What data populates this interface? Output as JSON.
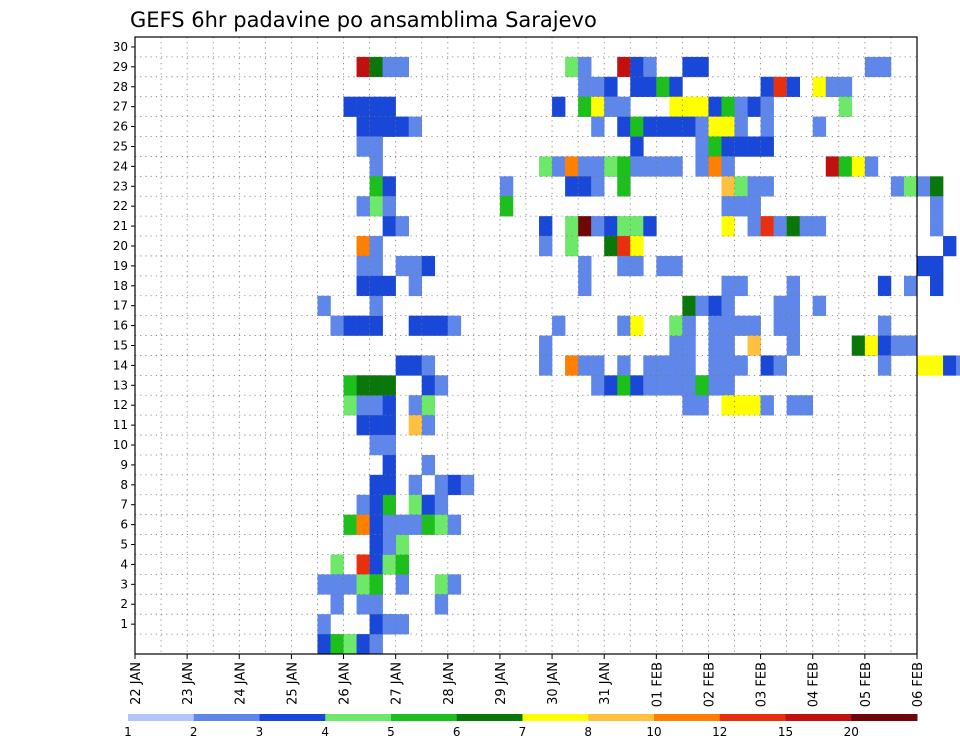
{
  "chart_data": {
    "type": "heatmap",
    "title": "GEFS 6hr padavine po ansamblima Sarajevo",
    "xlabel": "",
    "ylabel": "",
    "y_ticks": [
      "1",
      "2",
      "3",
      "4",
      "5",
      "6",
      "7",
      "8",
      "9",
      "10",
      "11",
      "12",
      "13",
      "14",
      "15",
      "16",
      "17",
      "18",
      "19",
      "20",
      "21",
      "22",
      "23",
      "24",
      "25",
      "26",
      "27",
      "28",
      "29",
      "30"
    ],
    "x_ticks": [
      "22 JAN",
      "23 JAN",
      "24 JAN",
      "25 JAN",
      "26 JAN",
      "27 JAN",
      "28 JAN",
      "29 JAN",
      "30 JAN",
      "31 JAN",
      "01 FEB",
      "02 FEB",
      "03 FEB",
      "04 FEB",
      "05 FEB",
      "06 FEB"
    ],
    "grid": true,
    "colorbar": {
      "levels": [
        1,
        2,
        3,
        4,
        5,
        6,
        7,
        8,
        10,
        12,
        15,
        20
      ],
      "tick_labels": [
        "1",
        "2",
        "3",
        "4",
        "5",
        "6",
        "7",
        "8",
        "10",
        "12",
        "15",
        "20"
      ],
      "colors": [
        "#b4c6f8",
        "#5f87ea",
        "#1948d8",
        "#6ee868",
        "#1cbf1c",
        "#0a770a",
        "#ffff00",
        "#ffc040",
        "#ff8000",
        "#e83010",
        "#c01010",
        "#6e0808"
      ]
    },
    "cells_note_units": "day = days after 22 JAN 00UTC, slot = 6h step, member = ensemble row, cat = colorbar level index 0-11",
    "cells": [
      [
        3.5,
        3,
        1
      ],
      [
        3.75,
        2,
        1
      ],
      [
        3.75,
        4,
        3
      ],
      [
        4.25,
        2,
        1
      ],
      [
        4.5,
        4,
        4
      ],
      [
        3.75,
        16,
        1
      ],
      [
        4,
        16,
        2
      ],
      [
        4.25,
        16,
        2
      ],
      [
        4.5,
        16,
        2
      ],
      [
        4.5,
        17,
        1
      ],
      [
        3.5,
        17,
        1
      ],
      [
        4,
        27,
        2
      ],
      [
        4.25,
        27,
        2
      ],
      [
        4.5,
        27,
        2
      ],
      [
        4.75,
        27,
        2
      ],
      [
        4.75,
        26,
        2
      ],
      [
        4.25,
        29,
        10
      ],
      [
        4.5,
        29,
        5
      ],
      [
        4.75,
        29,
        1
      ],
      [
        5,
        29,
        1
      ],
      [
        3.5,
        1,
        1
      ],
      [
        3.5,
        0,
        2
      ],
      [
        3.75,
        0,
        4
      ],
      [
        4,
        0,
        3
      ],
      [
        4.25,
        0,
        2
      ],
      [
        4.5,
        0,
        1
      ],
      [
        4.75,
        1,
        2
      ],
      [
        5,
        1,
        1
      ],
      [
        4.25,
        4,
        9
      ],
      [
        4.5,
        4,
        2
      ],
      [
        4.75,
        4,
        3
      ],
      [
        4.25,
        26,
        2
      ],
      [
        4.5,
        26,
        2
      ],
      [
        4.75,
        26,
        2
      ],
      [
        5,
        26,
        2
      ],
      [
        5.25,
        26,
        1
      ],
      [
        4.25,
        25,
        1
      ],
      [
        4.5,
        25,
        1
      ],
      [
        4.5,
        24,
        1
      ],
      [
        4.5,
        23,
        4
      ],
      [
        4.75,
        23,
        2
      ],
      [
        4.5,
        22,
        3
      ],
      [
        4.75,
        22,
        1
      ],
      [
        4.25,
        22,
        1
      ],
      [
        4.75,
        21,
        2
      ],
      [
        5,
        21,
        1
      ],
      [
        4.25,
        20,
        8
      ],
      [
        4.5,
        20,
        1
      ],
      [
        4.25,
        19,
        1
      ],
      [
        4.5,
        19,
        1
      ],
      [
        5,
        19,
        1
      ],
      [
        5.25,
        19,
        1
      ],
      [
        5.5,
        19,
        2
      ],
      [
        4.25,
        18,
        2
      ],
      [
        4.5,
        18,
        2
      ],
      [
        4.75,
        18,
        2
      ],
      [
        5.25,
        18,
        1
      ],
      [
        5.25,
        16,
        2
      ],
      [
        5.5,
        16,
        2
      ],
      [
        5.75,
        16,
        2
      ],
      [
        6,
        16,
        1
      ],
      [
        5,
        14,
        2
      ],
      [
        5.25,
        14,
        2
      ],
      [
        5.5,
        14,
        1
      ],
      [
        5.5,
        13,
        2
      ],
      [
        5.75,
        13,
        1
      ],
      [
        4.75,
        13,
        5
      ],
      [
        4.5,
        13,
        1
      ],
      [
        4.25,
        13,
        1
      ],
      [
        4,
        12,
        3
      ],
      [
        4.25,
        12,
        1
      ],
      [
        4.5,
        12,
        1
      ],
      [
        4.75,
        12,
        2
      ],
      [
        4.25,
        11,
        2
      ],
      [
        4.5,
        11,
        2
      ],
      [
        4.75,
        11,
        2
      ],
      [
        4.75,
        10,
        1
      ],
      [
        4.5,
        10,
        1
      ],
      [
        5.25,
        12,
        1
      ],
      [
        5.5,
        12,
        3
      ],
      [
        5.5,
        11,
        1
      ],
      [
        5.25,
        11,
        7
      ],
      [
        5.5,
        9,
        1
      ],
      [
        5.25,
        8,
        1
      ],
      [
        5.75,
        8,
        1
      ],
      [
        6,
        8,
        2
      ],
      [
        6.25,
        8,
        1
      ],
      [
        5.25,
        7,
        3
      ],
      [
        5.25,
        6,
        1
      ],
      [
        5.5,
        7,
        2
      ],
      [
        5.75,
        7,
        1
      ],
      [
        4.5,
        3,
        1
      ],
      [
        4.5,
        2,
        1
      ],
      [
        4.5,
        1,
        2
      ],
      [
        4.75,
        1,
        1
      ],
      [
        5,
        3,
        1
      ],
      [
        5,
        4,
        4
      ],
      [
        5,
        5,
        3
      ],
      [
        5,
        6,
        1
      ],
      [
        4.5,
        6,
        4
      ],
      [
        4.75,
        6,
        1
      ],
      [
        4.75,
        5,
        1
      ],
      [
        4.75,
        7,
        4
      ],
      [
        4.25,
        7,
        1
      ],
      [
        4.5,
        7,
        2
      ],
      [
        4.5,
        8,
        2
      ],
      [
        4.75,
        8,
        2
      ],
      [
        4.75,
        9,
        2
      ],
      [
        4,
        6,
        4
      ],
      [
        4.25,
        6,
        8
      ],
      [
        4.5,
        5,
        2
      ],
      [
        4.5,
        6,
        2
      ],
      [
        5.5,
        6,
        4
      ],
      [
        5.75,
        6,
        3
      ],
      [
        6,
        6,
        1
      ],
      [
        4,
        13,
        4
      ],
      [
        4.25,
        13,
        5
      ],
      [
        4.5,
        13,
        5
      ],
      [
        3.75,
        3,
        1
      ],
      [
        4,
        3,
        1
      ],
      [
        4.25,
        3,
        3
      ],
      [
        4.5,
        3,
        4
      ],
      [
        5.75,
        3,
        3
      ],
      [
        6,
        3,
        1
      ],
      [
        5.75,
        2,
        1
      ],
      [
        8.25,
        29,
        3
      ],
      [
        8.5,
        29,
        1
      ],
      [
        9.25,
        29,
        10
      ],
      [
        9.5,
        29,
        2
      ],
      [
        9.75,
        29,
        1
      ],
      [
        10.5,
        29,
        2
      ],
      [
        10.75,
        29,
        2
      ],
      [
        14,
        29,
        1
      ],
      [
        14.25,
        29,
        1
      ],
      [
        8.5,
        28,
        1
      ],
      [
        8.75,
        28,
        1
      ],
      [
        9,
        28,
        2
      ],
      [
        9.5,
        28,
        2
      ],
      [
        9.75,
        28,
        2
      ],
      [
        10,
        28,
        4
      ],
      [
        10.25,
        28,
        2
      ],
      [
        12,
        28,
        2
      ],
      [
        12.25,
        28,
        9
      ],
      [
        12.5,
        28,
        2
      ],
      [
        13,
        28,
        6
      ],
      [
        13.25,
        28,
        1
      ],
      [
        13.5,
        28,
        1
      ],
      [
        8,
        27,
        2
      ],
      [
        8.5,
        27,
        4
      ],
      [
        8.75,
        27,
        6
      ],
      [
        9,
        27,
        1
      ],
      [
        9.25,
        27,
        1
      ],
      [
        10.25,
        27,
        6
      ],
      [
        10.5,
        27,
        6
      ],
      [
        10.75,
        27,
        6
      ],
      [
        11,
        27,
        2
      ],
      [
        11.25,
        27,
        4
      ],
      [
        11.5,
        27,
        1
      ],
      [
        11.75,
        27,
        2
      ],
      [
        12,
        27,
        1
      ],
      [
        13.5,
        27,
        3
      ],
      [
        8.75,
        26,
        1
      ],
      [
        9.25,
        26,
        2
      ],
      [
        9.5,
        26,
        4
      ],
      [
        9.75,
        26,
        2
      ],
      [
        10,
        26,
        2
      ],
      [
        10.25,
        26,
        2
      ],
      [
        10.5,
        26,
        2
      ],
      [
        10.75,
        26,
        1
      ],
      [
        11,
        26,
        6
      ],
      [
        11.25,
        26,
        6
      ],
      [
        11.5,
        26,
        1
      ],
      [
        12,
        26,
        1
      ],
      [
        13,
        26,
        1
      ],
      [
        9.5,
        25,
        2
      ],
      [
        10.75,
        25,
        1
      ],
      [
        11,
        25,
        4
      ],
      [
        11.25,
        25,
        2
      ],
      [
        11.5,
        25,
        2
      ],
      [
        11.75,
        25,
        2
      ],
      [
        12,
        25,
        2
      ],
      [
        8.75,
        24,
        1
      ],
      [
        9,
        24,
        1
      ],
      [
        9.5,
        24,
        1
      ],
      [
        9.75,
        24,
        1
      ],
      [
        10,
        24,
        1
      ],
      [
        10.75,
        24,
        1
      ],
      [
        11,
        24,
        8
      ],
      [
        11.25,
        24,
        1
      ],
      [
        7,
        23,
        1
      ],
      [
        10.25,
        24,
        1
      ],
      [
        7.75,
        24,
        3
      ],
      [
        8,
        24,
        1
      ],
      [
        8.25,
        24,
        8
      ],
      [
        8.5,
        24,
        1
      ],
      [
        8.75,
        24,
        1
      ],
      [
        9,
        24,
        3
      ],
      [
        9.25,
        24,
        4
      ],
      [
        13.25,
        24,
        10
      ],
      [
        13.5,
        24,
        4
      ],
      [
        13.75,
        24,
        6
      ],
      [
        14,
        24,
        1
      ],
      [
        8.25,
        23,
        2
      ],
      [
        8.5,
        23,
        2
      ],
      [
        8.75,
        23,
        1
      ],
      [
        9.25,
        23,
        4
      ],
      [
        11.25,
        23,
        7
      ],
      [
        11.5,
        23,
        3
      ],
      [
        11.75,
        23,
        1
      ],
      [
        12,
        23,
        1
      ],
      [
        14.5,
        23,
        1
      ],
      [
        14.75,
        23,
        3
      ],
      [
        15,
        23,
        1
      ],
      [
        15.25,
        23,
        5
      ],
      [
        7,
        22,
        4
      ],
      [
        11.25,
        22,
        1
      ],
      [
        11.5,
        22,
        1
      ],
      [
        11.75,
        22,
        1
      ],
      [
        15.25,
        22,
        1
      ],
      [
        7.75,
        21,
        2
      ],
      [
        8.25,
        21,
        3
      ],
      [
        8.5,
        21,
        11
      ],
      [
        8.75,
        21,
        1
      ],
      [
        9,
        21,
        2
      ],
      [
        9.25,
        21,
        3
      ],
      [
        9.5,
        21,
        3
      ],
      [
        9.75,
        21,
        2
      ],
      [
        11.25,
        21,
        6
      ],
      [
        11.75,
        21,
        1
      ],
      [
        12,
        21,
        9
      ],
      [
        12.25,
        21,
        1
      ],
      [
        12.5,
        21,
        5
      ],
      [
        12.75,
        21,
        1
      ],
      [
        13,
        21,
        1
      ],
      [
        15.25,
        21,
        1
      ],
      [
        7.75,
        20,
        1
      ],
      [
        8.25,
        20,
        3
      ],
      [
        9,
        20,
        5
      ],
      [
        9.25,
        20,
        9
      ],
      [
        9.5,
        20,
        6
      ],
      [
        15.5,
        20,
        2
      ],
      [
        8.5,
        19,
        1
      ],
      [
        9.25,
        19,
        1
      ],
      [
        9.5,
        19,
        1
      ],
      [
        10,
        19,
        1
      ],
      [
        10.25,
        19,
        1
      ],
      [
        15,
        19,
        2
      ],
      [
        15.25,
        19,
        2
      ],
      [
        8.5,
        18,
        1
      ],
      [
        11.25,
        18,
        1
      ],
      [
        11.5,
        18,
        1
      ],
      [
        12.5,
        18,
        1
      ],
      [
        14.25,
        18,
        2
      ],
      [
        14.75,
        18,
        1
      ],
      [
        15.25,
        18,
        2
      ],
      [
        8,
        16,
        1
      ],
      [
        9.25,
        16,
        1
      ],
      [
        10.25,
        16,
        1
      ],
      [
        10.5,
        16,
        1
      ],
      [
        11,
        16,
        1
      ],
      [
        11.25,
        16,
        1
      ],
      [
        11.5,
        16,
        1
      ],
      [
        11.75,
        16,
        1
      ],
      [
        12.25,
        16,
        1
      ],
      [
        12.5,
        16,
        1
      ],
      [
        14.25,
        16,
        1
      ],
      [
        7.75,
        15,
        1
      ],
      [
        7.75,
        14,
        1
      ],
      [
        8.25,
        14,
        8
      ],
      [
        8.5,
        14,
        1
      ],
      [
        8.75,
        14,
        1
      ],
      [
        9.25,
        14,
        1
      ],
      [
        9.75,
        14,
        1
      ],
      [
        10,
        14,
        1
      ],
      [
        10.25,
        14,
        1
      ],
      [
        10.5,
        14,
        1
      ],
      [
        11,
        14,
        1
      ],
      [
        11.25,
        14,
        1
      ],
      [
        11.5,
        14,
        1
      ],
      [
        12,
        14,
        2
      ],
      [
        12.25,
        14,
        1
      ],
      [
        10.25,
        15,
        1
      ],
      [
        11,
        15,
        1
      ],
      [
        11.25,
        15,
        1
      ],
      [
        12.5,
        15,
        1
      ],
      [
        13.75,
        15,
        1
      ],
      [
        14,
        15,
        2
      ],
      [
        14.25,
        15,
        1
      ],
      [
        14.5,
        15,
        1
      ],
      [
        14.75,
        15,
        1
      ],
      [
        11.75,
        15,
        7
      ],
      [
        10.25,
        16,
        3
      ],
      [
        10.5,
        16,
        1
      ],
      [
        12.25,
        17,
        1
      ],
      [
        12.5,
        17,
        1
      ],
      [
        13,
        17,
        1
      ],
      [
        10.5,
        17,
        5
      ],
      [
        10.75,
        17,
        1
      ],
      [
        11,
        17,
        2
      ],
      [
        11.25,
        17,
        1
      ],
      [
        8.75,
        13,
        1
      ],
      [
        9,
        13,
        2
      ],
      [
        9.25,
        13,
        4
      ],
      [
        9.5,
        13,
        2
      ],
      [
        9.75,
        13,
        1
      ],
      [
        10,
        13,
        1
      ],
      [
        10.25,
        13,
        1
      ],
      [
        10.5,
        13,
        1
      ],
      [
        10.75,
        13,
        1
      ],
      [
        11,
        13,
        1
      ],
      [
        11.25,
        13,
        1
      ],
      [
        10.75,
        13,
        4
      ],
      [
        10.75,
        12,
        1
      ],
      [
        10.5,
        12,
        1
      ],
      [
        11.25,
        12,
        6
      ],
      [
        11.5,
        12,
        6
      ],
      [
        11.75,
        12,
        6
      ],
      [
        12,
        12,
        1
      ],
      [
        12.5,
        12,
        1
      ],
      [
        12.75,
        12,
        1
      ],
      [
        9.5,
        16,
        6
      ],
      [
        10.5,
        15,
        1
      ],
      [
        13.75,
        15,
        5
      ],
      [
        14,
        15,
        6
      ],
      [
        14.25,
        15,
        2
      ],
      [
        14.5,
        15,
        1
      ],
      [
        14.25,
        14,
        1
      ],
      [
        15,
        14,
        6
      ],
      [
        15.25,
        14,
        6
      ],
      [
        15.5,
        14,
        2
      ],
      [
        15.75,
        14,
        1
      ]
    ]
  }
}
